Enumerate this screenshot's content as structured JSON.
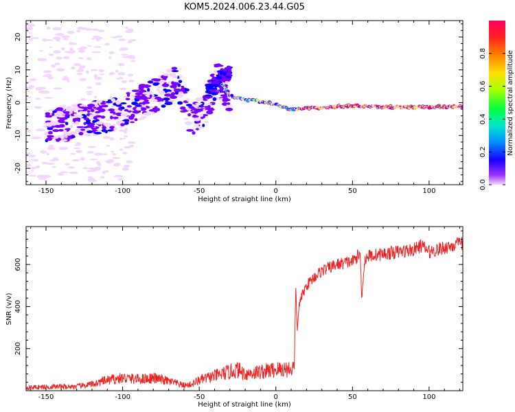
{
  "title": "KOM5.2024.006.23.44.G05",
  "chart_data": [
    {
      "type": "heatmap",
      "xlabel": "Height of straight line (km)",
      "ylabel": "Frequency (Hz)",
      "xlim": [
        -163,
        122
      ],
      "ylim": [
        -25,
        25
      ],
      "xticks": [
        -150,
        -100,
        -50,
        0,
        50,
        100
      ],
      "yticks": [
        -20,
        -10,
        0,
        10,
        20
      ],
      "colorbar": {
        "label": "Normalized spectral amplitude",
        "range": [
          0,
          1
        ],
        "ticks": [
          0.0,
          0.2,
          0.4,
          0.6,
          0.8
        ],
        "colormap": [
          "#f3d6ff",
          "#7a00ff",
          "#0000ff",
          "#00c8ff",
          "#00ff66",
          "#dfff00",
          "#ffd000",
          "#ff6600",
          "#ff1a3d",
          "#ff0066"
        ]
      },
      "ridge": {
        "description_points": [
          {
            "x": -163,
            "freq": -8
          },
          {
            "x": -130,
            "freq": -6
          },
          {
            "x": -100,
            "freq": -3
          },
          {
            "x": -80,
            "freq": 2
          },
          {
            "x": -65,
            "freq": 6
          },
          {
            "x": -55,
            "freq": -5
          },
          {
            "x": -45,
            "freq": -2
          },
          {
            "x": -38,
            "freq": 8
          },
          {
            "x": -30,
            "freq": 2
          },
          {
            "x": -20,
            "freq": 1
          },
          {
            "x": -5,
            "freq": 0
          },
          {
            "x": 10,
            "freq": -2
          },
          {
            "x": 50,
            "freq": -1
          },
          {
            "x": 90,
            "freq": -1.5
          },
          {
            "x": 122,
            "freq": -1
          }
        ]
      }
    },
    {
      "type": "line",
      "xlabel": "Height of straight line (km)",
      "ylabel": "SNR (v/v)",
      "xlim": [
        -163,
        122
      ],
      "ylim": [
        0,
        780
      ],
      "xticks": [
        -150,
        -100,
        -50,
        0,
        50,
        100
      ],
      "yticks": [
        200,
        400,
        600
      ],
      "color": "#ee2222",
      "x": [
        -163,
        -150,
        -130,
        -120,
        -110,
        -100,
        -90,
        -80,
        -70,
        -60,
        -55,
        -50,
        -40,
        -30,
        -25,
        -20,
        -10,
        0,
        10,
        12,
        13,
        14,
        15,
        17,
        20,
        25,
        30,
        40,
        50,
        55,
        56,
        58,
        60,
        70,
        80,
        90,
        95,
        100,
        110,
        115,
        122
      ],
      "values": [
        15,
        18,
        20,
        30,
        50,
        60,
        55,
        60,
        45,
        25,
        30,
        50,
        70,
        90,
        100,
        80,
        90,
        100,
        105,
        110,
        480,
        280,
        400,
        450,
        500,
        540,
        570,
        600,
        615,
        650,
        450,
        620,
        640,
        650,
        660,
        670,
        690,
        660,
        680,
        690,
        700
      ]
    }
  ]
}
